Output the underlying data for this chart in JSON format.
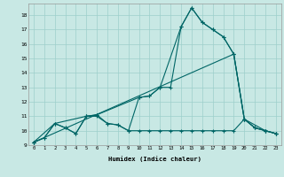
{
  "bg_color": "#c8e8e4",
  "grid_color": "#9dcfcb",
  "line_color": "#006666",
  "xlabel": "Humidex (Indice chaleur)",
  "xlim": [
    -0.5,
    23.5
  ],
  "ylim": [
    9.0,
    18.8
  ],
  "xticks": [
    0,
    1,
    2,
    3,
    4,
    5,
    6,
    7,
    8,
    9,
    10,
    11,
    12,
    13,
    14,
    15,
    16,
    17,
    18,
    19,
    20,
    21,
    22,
    23
  ],
  "yticks": [
    9,
    10,
    11,
    12,
    13,
    14,
    15,
    16,
    17,
    18
  ],
  "line1_x": [
    0,
    1,
    2,
    3,
    4,
    5,
    6,
    7,
    8,
    9,
    10,
    11,
    12,
    13,
    14,
    15,
    16,
    17,
    18,
    19,
    20,
    21,
    22,
    23
  ],
  "line1_y": [
    9.2,
    9.5,
    10.5,
    10.2,
    9.8,
    11.0,
    11.1,
    10.5,
    10.4,
    10.0,
    12.3,
    12.4,
    13.0,
    13.0,
    17.2,
    18.5,
    17.5,
    17.0,
    16.5,
    15.3,
    10.8,
    10.2,
    10.0,
    9.8
  ],
  "line2_x": [
    0,
    2,
    5,
    6,
    10,
    11,
    12,
    14,
    15,
    16,
    17,
    18,
    19,
    20,
    22,
    23
  ],
  "line2_y": [
    9.2,
    10.5,
    11.0,
    11.1,
    12.3,
    12.4,
    13.0,
    17.2,
    18.5,
    17.5,
    17.0,
    16.5,
    15.3,
    10.8,
    10.0,
    9.8
  ],
  "line3_x": [
    0,
    19,
    20,
    21,
    22,
    23
  ],
  "line3_y": [
    9.2,
    15.3,
    10.8,
    10.2,
    10.0,
    9.8
  ],
  "line4_x": [
    0,
    1,
    2,
    3,
    4,
    5,
    6,
    7,
    8,
    9,
    10,
    11,
    12,
    13,
    14,
    15,
    16,
    17,
    18,
    19,
    20,
    21,
    22,
    23
  ],
  "line4_y": [
    9.2,
    9.5,
    10.5,
    10.2,
    9.8,
    11.0,
    11.0,
    10.5,
    10.4,
    10.0,
    10.0,
    10.0,
    10.0,
    10.0,
    10.0,
    10.0,
    10.0,
    10.0,
    10.0,
    10.0,
    10.8,
    10.2,
    10.0,
    9.8
  ]
}
